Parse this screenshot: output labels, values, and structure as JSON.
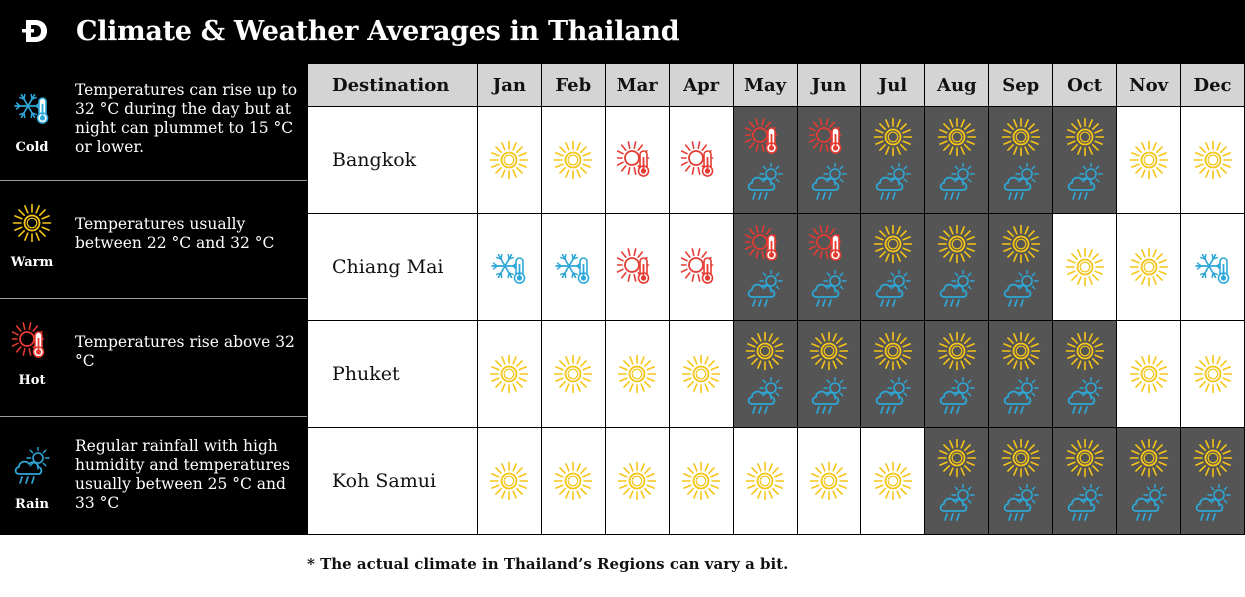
{
  "header": {
    "title": "Climate & Weather Averages in Thailand",
    "logo_letter": "D"
  },
  "legend": [
    {
      "key": "cold",
      "icon": "snowflake-thermometer-icon",
      "label": "Cold",
      "text": "Temperatures can rise up to 32 °C during the day but at night can plummet to 15 °C or lower.",
      "color": "#2ea8d8"
    },
    {
      "key": "warm",
      "icon": "sun-icon",
      "label": "Warm",
      "text": "Temperatures usually between 22 °C and 32 °C",
      "color": "#f5c518"
    },
    {
      "key": "hot",
      "icon": "sun-thermometer-icon",
      "label": "Hot",
      "text": "Temperatures rise above 32 °C",
      "color": "#e63a32"
    },
    {
      "key": "rain",
      "icon": "cloud-rain-sun-icon",
      "label": "Rain",
      "text": "Regular rainfall with high humidity and temperatures usually between 25 °C and 33 °C",
      "color": "#2ea8d8"
    }
  ],
  "table": {
    "destination_header": "Destination",
    "months": [
      "Jan",
      "Feb",
      "Mar",
      "Apr",
      "May",
      "Jun",
      "Jul",
      "Aug",
      "Sep",
      "Oct",
      "Nov",
      "Dec"
    ],
    "rows": [
      {
        "destination": "Bangkok",
        "cells": [
          [
            "warm"
          ],
          [
            "warm"
          ],
          [
            "hot"
          ],
          [
            "hot"
          ],
          [
            "hot",
            "rain"
          ],
          [
            "hot",
            "rain"
          ],
          [
            "warm",
            "rain"
          ],
          [
            "warm",
            "rain"
          ],
          [
            "warm",
            "rain"
          ],
          [
            "warm",
            "rain"
          ],
          [
            "warm"
          ],
          [
            "warm"
          ]
        ]
      },
      {
        "destination": "Chiang Mai",
        "cells": [
          [
            "cold"
          ],
          [
            "cold"
          ],
          [
            "hot"
          ],
          [
            "hot"
          ],
          [
            "hot",
            "rain"
          ],
          [
            "hot",
            "rain"
          ],
          [
            "warm",
            "rain"
          ],
          [
            "warm",
            "rain"
          ],
          [
            "warm",
            "rain"
          ],
          [
            "warm"
          ],
          [
            "warm"
          ],
          [
            "cold"
          ]
        ]
      },
      {
        "destination": "Phuket",
        "cells": [
          [
            "warm"
          ],
          [
            "warm"
          ],
          [
            "warm"
          ],
          [
            "warm"
          ],
          [
            "warm",
            "rain"
          ],
          [
            "warm",
            "rain"
          ],
          [
            "warm",
            "rain"
          ],
          [
            "warm",
            "rain"
          ],
          [
            "warm",
            "rain"
          ],
          [
            "warm",
            "rain"
          ],
          [
            "warm"
          ],
          [
            "warm"
          ]
        ]
      },
      {
        "destination": "Koh Samui",
        "cells": [
          [
            "warm"
          ],
          [
            "warm"
          ],
          [
            "warm"
          ],
          [
            "warm"
          ],
          [
            "warm"
          ],
          [
            "warm"
          ],
          [
            "warm"
          ],
          [
            "warm",
            "rain"
          ],
          [
            "warm",
            "rain"
          ],
          [
            "warm",
            "rain"
          ],
          [
            "warm",
            "rain"
          ],
          [
            "warm",
            "rain"
          ]
        ]
      }
    ]
  },
  "colors": {
    "rainy_cell_bg": "#555555",
    "header_bg": "#d4d4d4",
    "sun": "#f5c518",
    "hot": "#e63a32",
    "cold": "#2ea8d8",
    "rain": "#2ea8d8"
  },
  "footnote": "* The actual climate in Thailand’s Regions can vary a bit."
}
